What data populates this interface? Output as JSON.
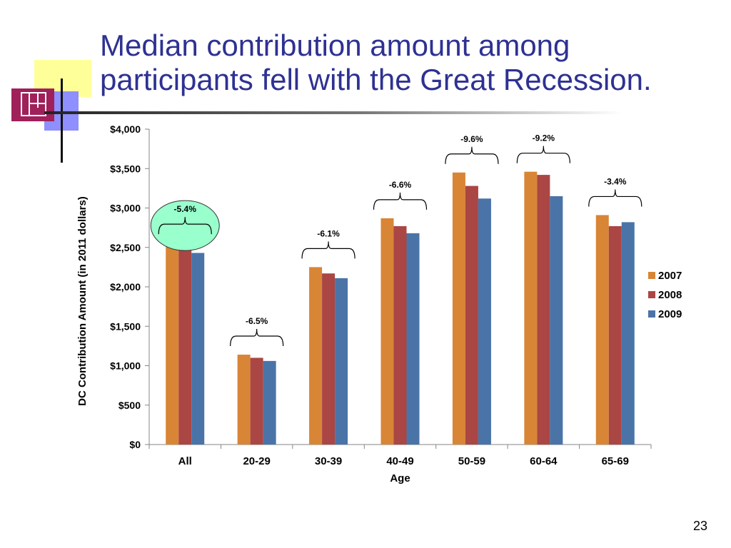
{
  "slide": {
    "title": "Median contribution amount among participants fell with the Great Recession.",
    "page_number": "23"
  },
  "chart_data": {
    "type": "bar",
    "title": "",
    "xlabel": "Age",
    "ylabel": "DC Contribution Amount (in 2011 dollars)",
    "categories": [
      "All",
      "20-29",
      "30-39",
      "40-49",
      "50-59",
      "60-64",
      "65-69"
    ],
    "series": [
      {
        "name": "2007",
        "color": "#d98536",
        "values": [
          2560,
          1140,
          2250,
          2870,
          3450,
          3460,
          2910
        ]
      },
      {
        "name": "2008",
        "color": "#aa4644",
        "values": [
          2480,
          1100,
          2170,
          2770,
          3280,
          3420,
          2770
        ]
      },
      {
        "name": "2009",
        "color": "#4a74a8",
        "values": [
          2430,
          1060,
          2110,
          2680,
          3120,
          3150,
          2820
        ]
      }
    ],
    "ylim": [
      0,
      4000
    ],
    "yticks": [
      0,
      500,
      1000,
      1500,
      2000,
      2500,
      3000,
      3500,
      4000
    ],
    "ytick_labels": [
      "$0",
      "$500",
      "$1,000",
      "$1,500",
      "$2,000",
      "$2,500",
      "$3,000",
      "$3,500",
      "$4,000"
    ],
    "grid": false,
    "legend_position": "right",
    "annotations": [
      "-5.4%",
      "-6.5%",
      "-6.1%",
      "-6.6%",
      "-9.6%",
      "-9.2%",
      "-3.4%"
    ],
    "highlighted_annotation": "-5.4%",
    "highlight_color": "#99ffcc"
  }
}
